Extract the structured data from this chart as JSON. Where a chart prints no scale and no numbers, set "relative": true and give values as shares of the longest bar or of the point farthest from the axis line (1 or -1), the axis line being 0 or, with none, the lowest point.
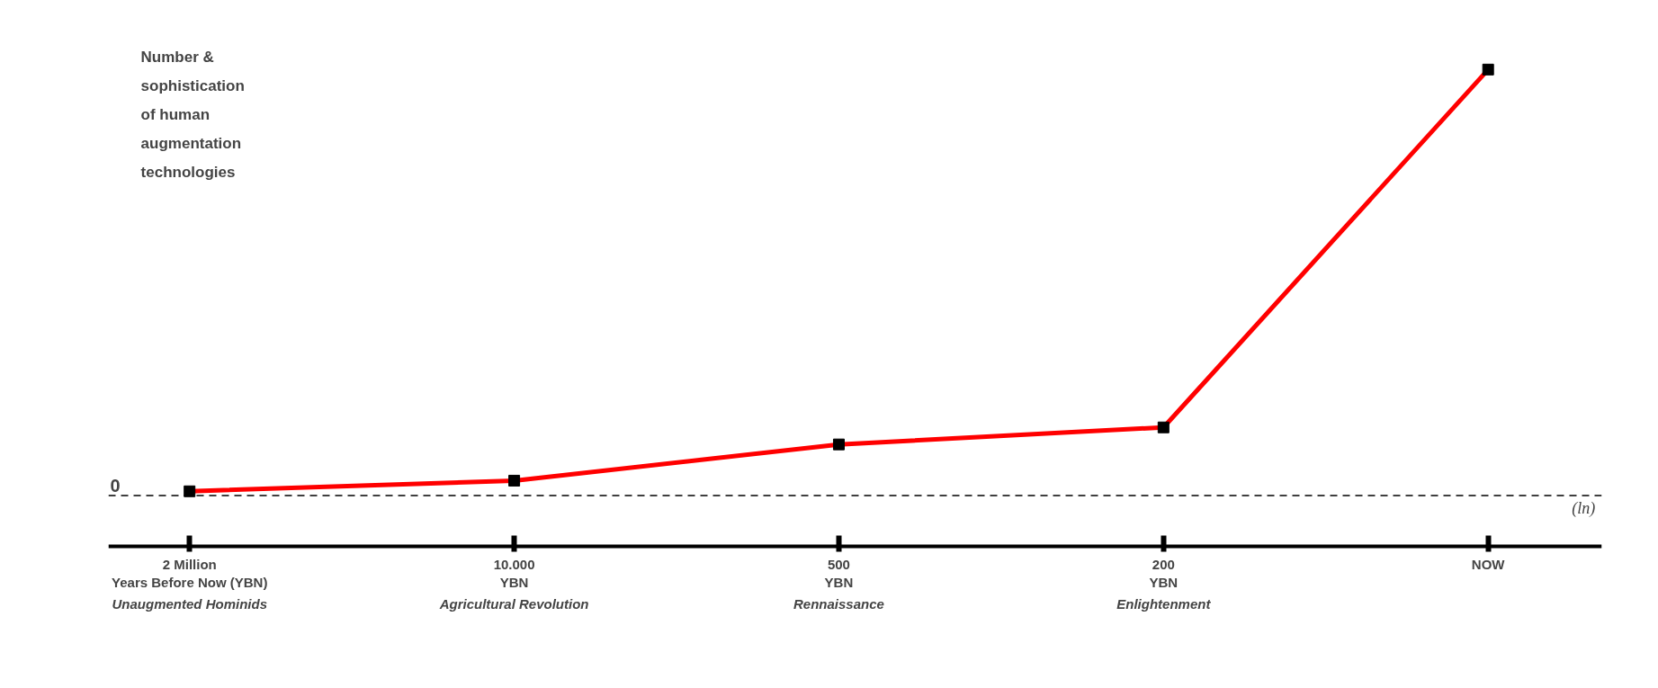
{
  "chart_data": {
    "type": "line",
    "relative": true,
    "ylabel": "Number &\nsophistication\nof human\naugmentation\ntechnologies",
    "categories": [
      "2 Million\nYears Before Now (YBN)",
      "10.000\nYBN",
      "500\nYBN",
      "200\nYBN",
      "NOW"
    ],
    "series": [
      {
        "color": "#ff0000",
        "values": [
          0.01,
          0.035,
          0.12,
          0.16,
          1.0
        ]
      }
    ],
    "marker": "square",
    "ref_lines": [
      {
        "axis": "y",
        "value": 0,
        "label": "0",
        "line_style": "dashed",
        "color": "#000000"
      }
    ],
    "annotations": [
      "Unaugmented Hominids",
      "Agricultural Revolution",
      "Rennaissance",
      "Enlightenment",
      "(ln)"
    ]
  }
}
